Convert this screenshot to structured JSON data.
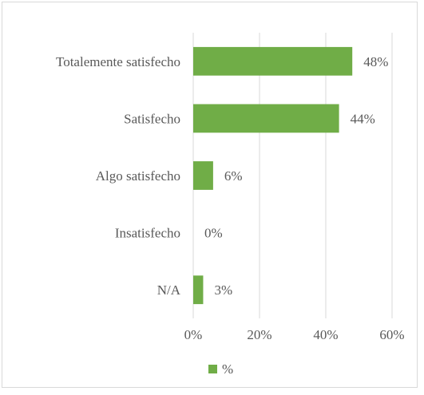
{
  "chart_data": {
    "type": "bar",
    "orientation": "horizontal",
    "categories": [
      "Totalemente satisfecho",
      "Satisfecho",
      "Algo satisfecho",
      "Insatisfecho",
      "N/A"
    ],
    "series": [
      {
        "name": "%",
        "values": [
          48,
          44,
          6,
          0,
          3
        ],
        "labels": [
          "48%",
          "44%",
          "6%",
          "0%",
          "3%"
        ]
      }
    ],
    "xlim": [
      0,
      60
    ],
    "xticks": [
      0,
      20,
      40,
      60
    ],
    "xtick_labels": [
      "0%",
      "20%",
      "40%",
      "60%"
    ],
    "grid": true,
    "legend_position": "bottom",
    "title": "",
    "xlabel": "",
    "ylabel": ""
  },
  "colors": {
    "bar": "#70ad47",
    "grid": "#d9d9d9",
    "text": "#595959"
  }
}
